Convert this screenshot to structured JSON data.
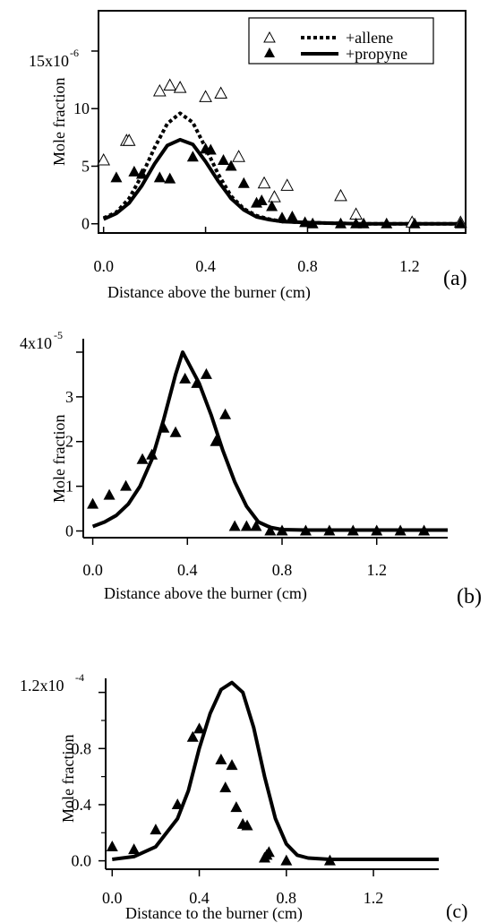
{
  "chart_data": [
    {
      "type": "scatter",
      "panel_label": "(a)",
      "xlabel": "Distance above the burner (cm)",
      "ylabel": "Mole fraction",
      "y_multiplier_label": "15x10",
      "y_multiplier_exp": "-6",
      "xlim": [
        -0.02,
        1.42
      ],
      "ylim": [
        -0.8,
        18.5
      ],
      "x_ticks": [
        0.0,
        0.4,
        0.8,
        1.2
      ],
      "x_tick_labels": [
        "0.0",
        "0.4",
        "0.8",
        "1.2"
      ],
      "y_ticks": [
        0,
        5,
        10,
        15
      ],
      "y_tick_labels": [
        "0",
        "5",
        "10",
        ""
      ],
      "legend": {
        "position": "top-right",
        "entries": [
          "+allene",
          "+propyne"
        ]
      },
      "series": [
        {
          "name": "+allene",
          "kind": "points",
          "marker": "open-triangle",
          "x": [
            0.0,
            0.09,
            0.1,
            0.22,
            0.26,
            0.3,
            0.4,
            0.46,
            0.53,
            0.63,
            0.67,
            0.72,
            0.93,
            0.99,
            1.21,
            1.4
          ],
          "y": [
            5.5,
            7.2,
            7.2,
            11.5,
            12.0,
            11.8,
            11.0,
            11.3,
            5.8,
            3.5,
            2.3,
            3.3,
            2.4,
            0.8,
            0.1,
            0.1
          ]
        },
        {
          "name": "+propyne",
          "kind": "points",
          "marker": "filled-triangle",
          "x": [
            0.05,
            0.12,
            0.15,
            0.22,
            0.26,
            0.35,
            0.4,
            0.42,
            0.47,
            0.5,
            0.55,
            0.6,
            0.62,
            0.66,
            0.7,
            0.74,
            0.79,
            0.82,
            0.93,
            0.99,
            1.02,
            1.11,
            1.22,
            1.4
          ],
          "y": [
            4.0,
            4.5,
            4.3,
            4.0,
            3.9,
            5.8,
            6.5,
            6.4,
            5.5,
            5.0,
            3.5,
            1.8,
            2.0,
            1.5,
            0.5,
            0.6,
            0.1,
            0.0,
            0.0,
            0.0,
            0.0,
            0.0,
            0.0,
            0.0
          ]
        },
        {
          "name": "+allene",
          "kind": "model",
          "style": "dotted",
          "x": [
            0.0,
            0.05,
            0.1,
            0.15,
            0.2,
            0.25,
            0.3,
            0.35,
            0.4,
            0.45,
            0.5,
            0.55,
            0.6,
            0.65,
            0.7,
            0.8,
            0.9,
            1.0,
            1.2,
            1.4
          ],
          "y": [
            0.5,
            1.0,
            2.2,
            4.2,
            6.6,
            8.7,
            9.6,
            8.8,
            6.6,
            4.3,
            2.4,
            1.3,
            0.7,
            0.4,
            0.2,
            0.1,
            0.05,
            0.0,
            0.0,
            0.0
          ]
        },
        {
          "name": "+propyne",
          "kind": "model",
          "style": "solid",
          "x": [
            0.0,
            0.05,
            0.1,
            0.15,
            0.2,
            0.25,
            0.3,
            0.35,
            0.4,
            0.45,
            0.5,
            0.55,
            0.6,
            0.65,
            0.7,
            0.8,
            0.9,
            1.0,
            1.2,
            1.4
          ],
          "y": [
            0.4,
            0.9,
            1.8,
            3.3,
            5.2,
            6.8,
            7.3,
            6.9,
            5.4,
            3.7,
            2.2,
            1.2,
            0.6,
            0.35,
            0.2,
            0.1,
            0.05,
            0.0,
            0.0,
            0.0
          ]
        }
      ]
    },
    {
      "type": "scatter",
      "panel_label": "(b)",
      "xlabel": "Distance above the burner (cm)",
      "ylabel": "Mole fraction",
      "y_multiplier_label": "4x10",
      "y_multiplier_exp": "-5",
      "xlim": [
        -0.04,
        1.5
      ],
      "ylim": [
        -0.15,
        4.3
      ],
      "x_ticks": [
        0.0,
        0.4,
        0.8,
        1.2
      ],
      "x_tick_labels": [
        "0.0",
        "0.4",
        "0.8",
        "1.2"
      ],
      "y_ticks": [
        0,
        1,
        2,
        3,
        4
      ],
      "y_tick_labels": [
        "0",
        "1",
        "2",
        "3",
        ""
      ],
      "series": [
        {
          "name": "",
          "kind": "points",
          "marker": "filled-triangle",
          "x": [
            0.0,
            0.07,
            0.14,
            0.21,
            0.25,
            0.3,
            0.35,
            0.39,
            0.44,
            0.48,
            0.52,
            0.56,
            0.6,
            0.65,
            0.69,
            0.75,
            0.8,
            0.9,
            1.0,
            1.1,
            1.2,
            1.3,
            1.4
          ],
          "y": [
            0.6,
            0.8,
            1.0,
            1.6,
            1.7,
            2.3,
            2.2,
            3.4,
            3.3,
            3.5,
            2.0,
            2.6,
            0.1,
            0.1,
            0.1,
            0.0,
            0.0,
            0.0,
            0.0,
            0.0,
            0.0,
            0.0,
            0.0
          ]
        },
        {
          "name": "",
          "kind": "model",
          "style": "solid",
          "x": [
            0.0,
            0.05,
            0.1,
            0.15,
            0.2,
            0.25,
            0.3,
            0.35,
            0.38,
            0.4,
            0.45,
            0.5,
            0.55,
            0.6,
            0.65,
            0.7,
            0.75,
            0.8,
            0.9,
            1.0,
            1.2,
            1.5
          ],
          "y": [
            0.1,
            0.2,
            0.35,
            0.6,
            1.0,
            1.6,
            2.5,
            3.5,
            4.0,
            3.8,
            3.3,
            2.6,
            1.8,
            1.1,
            0.55,
            0.2,
            0.08,
            0.03,
            0.02,
            0.02,
            0.02,
            0.02
          ]
        }
      ]
    },
    {
      "type": "scatter",
      "panel_label": "(c)",
      "xlabel": "Distance to the burner (cm)",
      "ylabel": "Mole fraction",
      "y_multiplier_label": "1.2x10",
      "y_multiplier_exp": "-4",
      "xlim": [
        -0.03,
        1.5
      ],
      "ylim": [
        -0.06,
        1.3
      ],
      "x_ticks": [
        0.0,
        0.4,
        0.8,
        1.2
      ],
      "x_tick_labels": [
        "0.0",
        "0.4",
        "0.8",
        "1.2"
      ],
      "y_ticks": [
        0.0,
        0.4,
        0.8,
        1.2
      ],
      "y_tick_labels": [
        "0.0",
        "0.4",
        "0.8",
        ""
      ],
      "y_minor_ticks": [
        0.2,
        0.6,
        1.0
      ],
      "series": [
        {
          "name": "",
          "kind": "points",
          "marker": "filled-triangle",
          "x": [
            0.0,
            0.1,
            0.2,
            0.3,
            0.37,
            0.4,
            0.5,
            0.52,
            0.55,
            0.57,
            0.6,
            0.62,
            0.7,
            0.71,
            0.72,
            0.8,
            1.0
          ],
          "y": [
            0.1,
            0.08,
            0.22,
            0.4,
            0.88,
            0.94,
            0.72,
            0.52,
            0.68,
            0.38,
            0.26,
            0.25,
            0.02,
            0.04,
            0.06,
            0.0,
            0.0
          ]
        },
        {
          "name": "",
          "kind": "model",
          "style": "solid",
          "x": [
            0.0,
            0.1,
            0.2,
            0.3,
            0.35,
            0.4,
            0.45,
            0.5,
            0.55,
            0.6,
            0.65,
            0.7,
            0.75,
            0.8,
            0.85,
            0.9,
            1.0,
            1.2,
            1.5
          ],
          "y": [
            0.01,
            0.03,
            0.1,
            0.3,
            0.5,
            0.8,
            1.05,
            1.22,
            1.27,
            1.2,
            0.95,
            0.6,
            0.3,
            0.12,
            0.04,
            0.02,
            0.01,
            0.01,
            0.01
          ]
        }
      ]
    }
  ]
}
